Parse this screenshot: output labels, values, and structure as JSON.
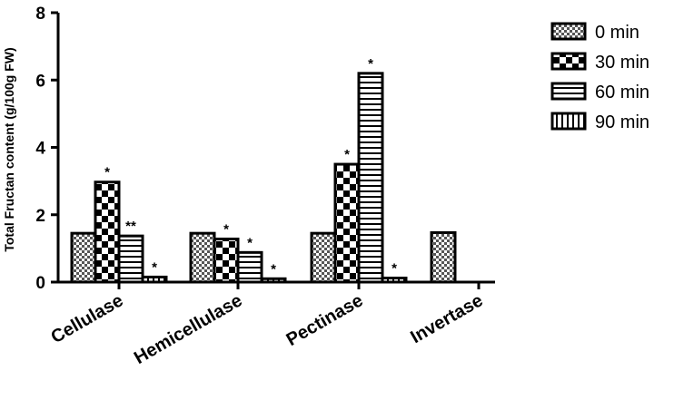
{
  "chart_data": {
    "type": "bar",
    "ylabel": "Total Fructan content (g/100g  FW)",
    "ylim": [
      0,
      8
    ],
    "yticks": [
      "0",
      "2",
      "4",
      "6",
      "8"
    ],
    "categories": [
      "Cellulase",
      "Hemicellulase",
      "Pectinase",
      "Invertase"
    ],
    "series": [
      {
        "name": "0 min",
        "pattern": "checker-fine",
        "values": [
          1.45,
          1.45,
          1.45,
          1.47
        ],
        "annotations": [
          "",
          "",
          "",
          ""
        ]
      },
      {
        "name": "30 min",
        "pattern": "checker-coarse",
        "values": [
          2.97,
          1.28,
          3.5,
          null
        ],
        "annotations": [
          "*",
          "*",
          "*",
          ""
        ]
      },
      {
        "name": "60 min",
        "pattern": "h-stripes",
        "values": [
          1.37,
          0.88,
          6.2,
          null
        ],
        "annotations": [
          "**",
          "*",
          "*",
          ""
        ]
      },
      {
        "name": "90 min",
        "pattern": "v-stripes",
        "values": [
          0.15,
          0.1,
          0.12,
          null
        ],
        "annotations": [
          "*",
          "*",
          "*",
          ""
        ]
      }
    ],
    "legend_position": "top-right",
    "grid": false
  }
}
